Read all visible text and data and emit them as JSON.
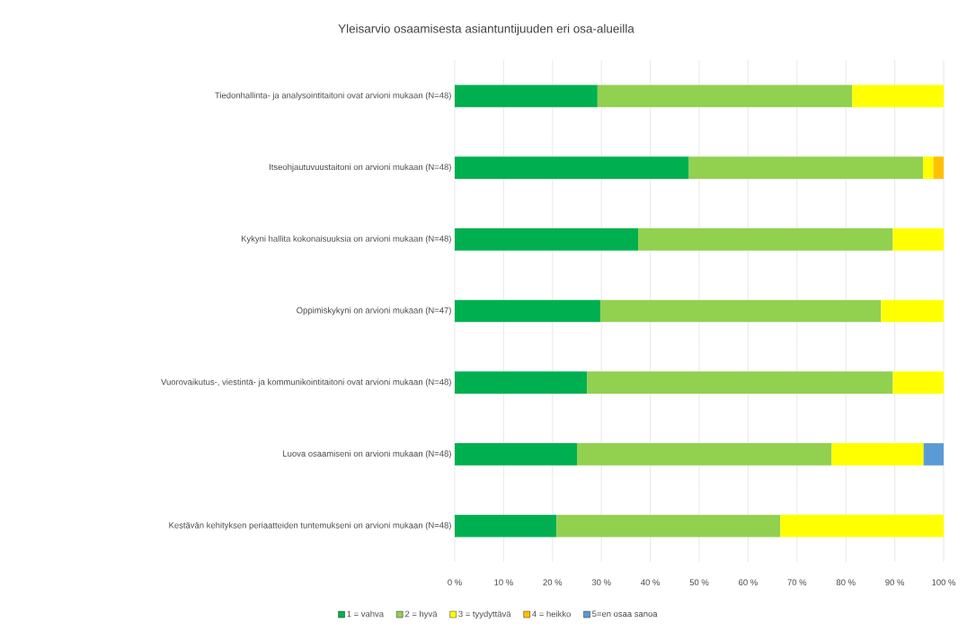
{
  "chart_data": {
    "type": "bar",
    "orientation": "horizontal",
    "stacked": true,
    "title": "Yleisarvio osaamisesta asiantuntijuuden eri osa-alueilla",
    "categories": [
      "Tiedonhallinta- ja analysointitaitoni ovat arvioni mukaan  (N=48)",
      "Itseohjautuvuustaitoni on arvioni mukaan  (N=48)",
      "Kykyni hallita kokonaisuuksia on arvioni mukaan  (N=48)",
      "Oppimiskykyni on arvioni mukaan  (N=47)",
      "Vuorovaikutus-, viestintä- ja kommunikointitaitoni ovat arvioni mukaan  (N=48)",
      "Luova osaamiseni on arvioni mukaan  (N=48)",
      "Kestävän kehityksen periaatteiden tuntemukseni on arvioni mukaan (N=48)"
    ],
    "series": [
      {
        "name": "1 = vahva",
        "color": "#00b050",
        "values": [
          29.2,
          47.9,
          37.5,
          29.8,
          27.1,
          25.0,
          20.8
        ]
      },
      {
        "name": "2 = hyvä",
        "color": "#92d050",
        "values": [
          52.1,
          47.9,
          52.1,
          57.4,
          62.5,
          52.1,
          45.8
        ]
      },
      {
        "name": "3 = tyydyttävä",
        "color": "#ffff00",
        "values": [
          18.7,
          2.1,
          10.4,
          12.8,
          10.4,
          18.8,
          33.4
        ]
      },
      {
        "name": "4 = heikko",
        "color": "#ffc000",
        "values": [
          null,
          2.1,
          null,
          null,
          null,
          null,
          null
        ]
      },
      {
        "name": "5=en osaa sanoa",
        "color": "#5b9bd5",
        "values": [
          null,
          null,
          null,
          null,
          null,
          4.1,
          null
        ]
      }
    ],
    "xlim": [
      0,
      100
    ],
    "xticks": [
      {
        "value": 0,
        "label": "0 %"
      },
      {
        "value": 10,
        "label": "10 %"
      },
      {
        "value": 20,
        "label": "20 %"
      },
      {
        "value": 30,
        "label": "30 %"
      },
      {
        "value": 40,
        "label": "40 %"
      },
      {
        "value": 50,
        "label": "50 %"
      },
      {
        "value": 60,
        "label": "60 %"
      },
      {
        "value": 70,
        "label": "70 %"
      },
      {
        "value": 80,
        "label": "80 %"
      },
      {
        "value": 90,
        "label": "90 %"
      },
      {
        "value": 100,
        "label": "100 %"
      }
    ],
    "grid": "x",
    "legend": "bottom"
  }
}
